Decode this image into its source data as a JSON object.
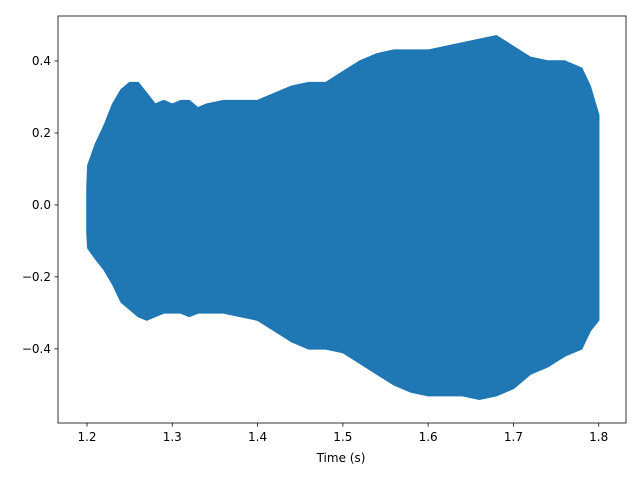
{
  "chart_data": {
    "type": "band",
    "x_label": "Time (s)",
    "color": "#1f77b4",
    "x": [
      1.2,
      1.201,
      1.21,
      1.22,
      1.23,
      1.24,
      1.25,
      1.26,
      1.27,
      1.28,
      1.29,
      1.3,
      1.31,
      1.32,
      1.33,
      1.34,
      1.36,
      1.38,
      1.4,
      1.42,
      1.44,
      1.46,
      1.48,
      1.5,
      1.52,
      1.54,
      1.56,
      1.58,
      1.6,
      1.62,
      1.64,
      1.66,
      1.68,
      1.7,
      1.72,
      1.74,
      1.76,
      1.78,
      1.79,
      1.8
    ],
    "y_max": [
      0.05,
      0.11,
      0.17,
      0.22,
      0.28,
      0.32,
      0.34,
      0.34,
      0.31,
      0.28,
      0.29,
      0.28,
      0.29,
      0.29,
      0.27,
      0.28,
      0.29,
      0.29,
      0.29,
      0.31,
      0.33,
      0.34,
      0.34,
      0.37,
      0.4,
      0.42,
      0.43,
      0.43,
      0.43,
      0.44,
      0.45,
      0.46,
      0.47,
      0.44,
      0.41,
      0.4,
      0.4,
      0.38,
      0.33,
      0.25
    ],
    "y_min": [
      -0.08,
      -0.12,
      -0.15,
      -0.18,
      -0.22,
      -0.27,
      -0.29,
      -0.31,
      -0.32,
      -0.31,
      -0.3,
      -0.3,
      -0.3,
      -0.31,
      -0.3,
      -0.3,
      -0.3,
      -0.31,
      -0.32,
      -0.35,
      -0.38,
      -0.4,
      -0.4,
      -0.41,
      -0.44,
      -0.47,
      -0.5,
      -0.52,
      -0.53,
      -0.53,
      -0.53,
      -0.54,
      -0.53,
      -0.51,
      -0.47,
      -0.45,
      -0.42,
      -0.4,
      -0.35,
      -0.32
    ],
    "xlim": [
      1.166,
      1.832
    ],
    "ylim": [
      -0.606,
      0.525
    ],
    "xticks": [
      1.2,
      1.3,
      1.4,
      1.5,
      1.6,
      1.7,
      1.8
    ],
    "yticks": [
      {
        "value": -0.4,
        "label": "−0.4"
      },
      {
        "value": -0.2,
        "label": "−0.2"
      },
      {
        "value": 0,
        "label": "0.0"
      },
      0.2,
      0.4
    ]
  }
}
